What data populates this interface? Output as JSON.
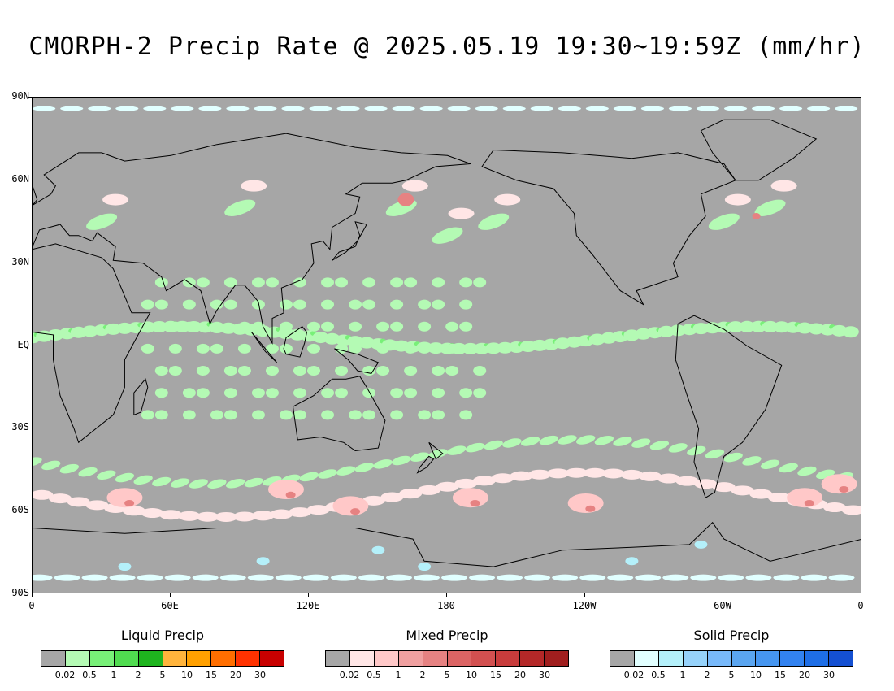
{
  "title": "CMORPH-2 Precip Rate @ 2025.05.19 19:30~19:59Z (mm/hr)",
  "map": {
    "lat_labels": [
      "90N",
      "60N",
      "30N",
      "EQ",
      "30S",
      "60S",
      "90S"
    ],
    "lon_labels": [
      "0",
      "60E",
      "120E",
      "180",
      "120W",
      "60W",
      "0"
    ],
    "background_color": "#a6a6a6",
    "lat_range": [
      -90,
      90
    ],
    "lon_range": [
      0,
      360
    ]
  },
  "legends": [
    {
      "title": "Liquid Precip",
      "colors": [
        "#a6a6a6",
        "#b4fab4",
        "#78f078",
        "#50dc50",
        "#1eb41e",
        "#ffb43c",
        "#ffa000",
        "#ff6e00",
        "#ff3200",
        "#c80000"
      ],
      "tick_labels": [
        "0.02",
        "0.5",
        "1",
        "2",
        "5",
        "10",
        "15",
        "20",
        "30"
      ]
    },
    {
      "title": "Mixed Precip",
      "colors": [
        "#a6a6a6",
        "#ffe6e6",
        "#ffc8c8",
        "#f0a0a0",
        "#e68282",
        "#dc6464",
        "#d25050",
        "#c83c3c",
        "#b42828",
        "#a01e1e"
      ],
      "tick_labels": [
        "0.02",
        "0.5",
        "1",
        "2",
        "5",
        "10",
        "15",
        "20",
        "30"
      ]
    },
    {
      "title": "Solid Precip",
      "colors": [
        "#a6a6a6",
        "#e1ffff",
        "#b4f0fa",
        "#96d2fa",
        "#78b9fa",
        "#5aa5f0",
        "#4696f0",
        "#3282f0",
        "#1e6ee6",
        "#1450d2"
      ],
      "tick_labels": [
        "0.02",
        "0.5",
        "1",
        "2",
        "5",
        "10",
        "15",
        "20",
        "30"
      ]
    }
  ]
}
